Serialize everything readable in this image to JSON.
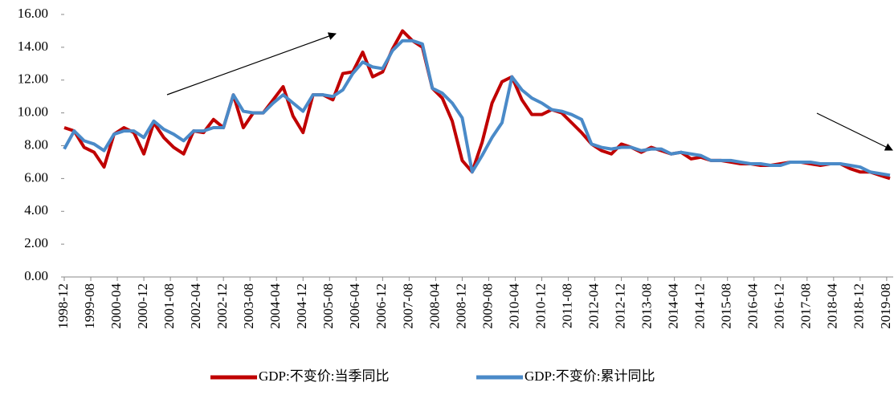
{
  "chart_data": {
    "type": "line",
    "x": [
      "1998-12",
      "1999-03",
      "1999-06",
      "1999-09",
      "1999-12",
      "2000-03",
      "2000-06",
      "2000-09",
      "2000-12",
      "2001-03",
      "2001-06",
      "2001-09",
      "2001-12",
      "2002-03",
      "2002-06",
      "2002-09",
      "2002-12",
      "2003-03",
      "2003-06",
      "2003-09",
      "2003-12",
      "2004-03",
      "2004-06",
      "2004-09",
      "2004-12",
      "2005-03",
      "2005-06",
      "2005-09",
      "2005-12",
      "2006-03",
      "2006-06",
      "2006-09",
      "2006-12",
      "2007-03",
      "2007-06",
      "2007-09",
      "2007-12",
      "2008-03",
      "2008-06",
      "2008-09",
      "2008-12",
      "2009-03",
      "2009-06",
      "2009-09",
      "2009-12",
      "2010-03",
      "2010-06",
      "2010-09",
      "2010-12",
      "2011-03",
      "2011-06",
      "2011-09",
      "2011-12",
      "2012-03",
      "2012-06",
      "2012-09",
      "2012-12",
      "2013-03",
      "2013-06",
      "2013-09",
      "2013-12",
      "2014-03",
      "2014-06",
      "2014-09",
      "2014-12",
      "2015-03",
      "2015-06",
      "2015-09",
      "2015-12",
      "2016-03",
      "2016-06",
      "2016-09",
      "2016-12",
      "2017-03",
      "2017-06",
      "2017-09",
      "2017-12",
      "2018-03",
      "2018-06",
      "2018-09",
      "2018-12",
      "2019-03",
      "2019-06",
      "2019-09"
    ],
    "series": [
      {
        "name": "GDP:不变价:当季同比",
        "color": "#c00000",
        "values": [
          9.1,
          8.9,
          7.9,
          7.6,
          6.7,
          8.7,
          9.1,
          8.8,
          7.5,
          9.4,
          8.5,
          7.9,
          7.5,
          8.9,
          8.8,
          9.6,
          9.1,
          11.1,
          9.1,
          10.0,
          10.0,
          10.8,
          11.6,
          9.8,
          8.8,
          11.1,
          11.1,
          10.8,
          12.4,
          12.5,
          13.7,
          12.2,
          12.5,
          13.9,
          15.0,
          14.4,
          14.0,
          11.5,
          10.9,
          9.5,
          7.1,
          6.4,
          8.2,
          10.6,
          11.9,
          12.2,
          10.8,
          9.9,
          9.9,
          10.2,
          10.0,
          9.4,
          8.8,
          8.1,
          7.7,
          7.5,
          8.1,
          7.9,
          7.6,
          7.9,
          7.7,
          7.5,
          7.6,
          7.2,
          7.3,
          7.1,
          7.1,
          7.0,
          6.9,
          6.9,
          6.8,
          6.8,
          6.9,
          7.0,
          7.0,
          6.9,
          6.8,
          6.9,
          6.9,
          6.6,
          6.4,
          6.4,
          6.2,
          6.0
        ]
      },
      {
        "name": "GDP:不变价:累计同比",
        "color": "#4a8ac8",
        "values": [
          7.8,
          8.9,
          8.3,
          8.1,
          7.7,
          8.7,
          8.9,
          8.9,
          8.5,
          9.5,
          9.0,
          8.7,
          8.3,
          8.9,
          8.9,
          9.1,
          9.1,
          11.1,
          10.1,
          10.0,
          10.0,
          10.6,
          11.1,
          10.6,
          10.1,
          11.1,
          11.1,
          11.0,
          11.4,
          12.4,
          13.1,
          12.8,
          12.7,
          13.8,
          14.4,
          14.4,
          14.2,
          11.5,
          11.2,
          10.6,
          9.7,
          6.4,
          7.4,
          8.5,
          9.4,
          12.2,
          11.4,
          10.9,
          10.6,
          10.2,
          10.1,
          9.9,
          9.6,
          8.1,
          7.9,
          7.8,
          7.9,
          7.9,
          7.7,
          7.8,
          7.8,
          7.5,
          7.6,
          7.5,
          7.4,
          7.1,
          7.1,
          7.1,
          7.0,
          6.9,
          6.9,
          6.8,
          6.8,
          7.0,
          7.0,
          7.0,
          6.9,
          6.9,
          6.9,
          6.8,
          6.7,
          6.4,
          6.3,
          6.2
        ]
      }
    ],
    "xlim": [
      "1998-12",
      "2019-09"
    ],
    "xticks": [
      "1998-12",
      "1999-08",
      "2000-04",
      "2000-12",
      "2001-08",
      "2002-04",
      "2002-12",
      "2003-08",
      "2004-04",
      "2004-12",
      "2005-08",
      "2006-04",
      "2006-12",
      "2007-08",
      "2008-04",
      "2008-12",
      "2009-08",
      "2010-04",
      "2010-12",
      "2011-08",
      "2012-04",
      "2012-12",
      "2013-08",
      "2014-04",
      "2014-12",
      "2015-08",
      "2016-04",
      "2016-12",
      "2017-08",
      "2018-04",
      "2018-12",
      "2019-08"
    ],
    "ylim": [
      0,
      16
    ],
    "yticks": [
      {
        "value": 0,
        "label": "0.00"
      },
      {
        "value": 2,
        "label": "2.00"
      },
      {
        "value": 4,
        "label": "4.00"
      },
      {
        "value": 6,
        "label": "6.00"
      },
      {
        "value": 8,
        "label": "8.00"
      },
      {
        "value": 10,
        "label": "10.00"
      },
      {
        "value": 12,
        "label": "12.00"
      },
      {
        "value": 14,
        "label": "14.00"
      },
      {
        "value": 16,
        "label": "16.00"
      }
    ],
    "legend": "bottom"
  }
}
